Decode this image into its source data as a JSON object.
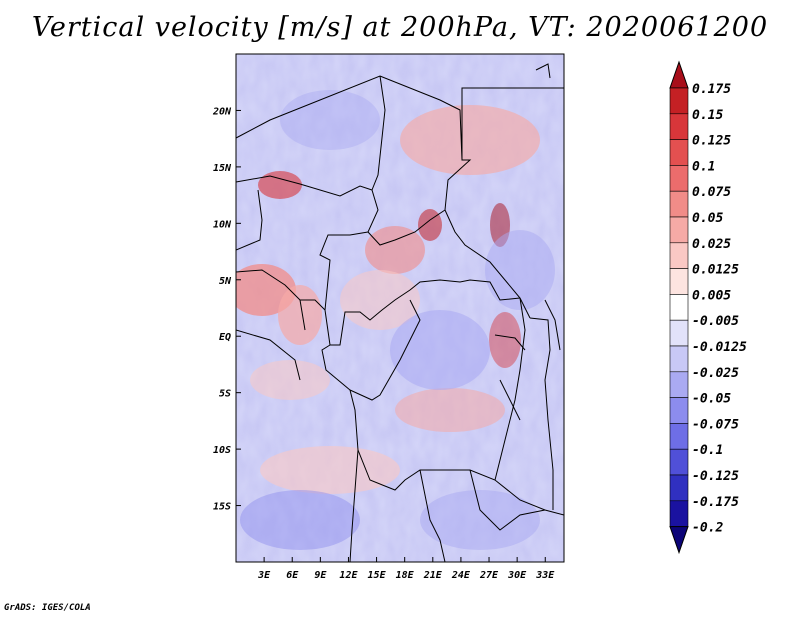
{
  "title": "Vertical velocity [m/s] at 200hPa, VT: 2020061200",
  "footer": "GrADS: IGES/COLA",
  "map": {
    "region": "Central Africa",
    "lon_range": [
      0,
      35
    ],
    "lat_range": [
      -20,
      25
    ],
    "lon_ticks": [
      "3E",
      "6E",
      "9E",
      "12E",
      "15E",
      "18E",
      "21E",
      "24E",
      "27E",
      "30E",
      "33E"
    ],
    "lon_values": [
      3,
      6,
      9,
      12,
      15,
      18,
      21,
      24,
      27,
      30,
      33
    ],
    "lat_ticks": [
      "20N",
      "15N",
      "10N",
      "5N",
      "EQ",
      "5S",
      "10S",
      "15S"
    ],
    "lat_values": [
      20,
      15,
      10,
      5,
      0,
      -5,
      -10,
      -15
    ]
  },
  "colorbar": {
    "labels": [
      "0.175",
      "0.15",
      "0.125",
      "0.1",
      "0.075",
      "0.05",
      "0.025",
      "0.0125",
      "0.005",
      "-0.005",
      "-0.0125",
      "-0.025",
      "-0.05",
      "-0.075",
      "-0.1",
      "-0.125",
      "-0.175",
      "-0.2"
    ],
    "colors": [
      "#a80e1a",
      "#c42024",
      "#d8363a",
      "#e35050",
      "#ec6c6c",
      "#f18c88",
      "#f6aaa6",
      "#fac8c4",
      "#fde4e0",
      "#ffffff",
      "#e2e2fa",
      "#c8c8f6",
      "#aaaaf2",
      "#8c8cee",
      "#6e6ee6",
      "#5050d8",
      "#3030c0",
      "#1a12a0",
      "#0c0478"
    ]
  }
}
